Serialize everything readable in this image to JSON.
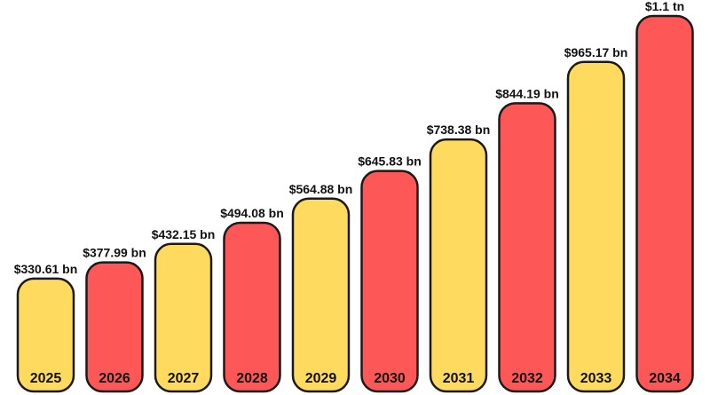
{
  "colors": {
    "yellow": "#FEDB5E",
    "red": "#FE5757",
    "outline": "#1A1A1A"
  },
  "chart_data": {
    "type": "bar",
    "categories": [
      "2025",
      "2026",
      "2027",
      "2028",
      "2029",
      "2030",
      "2031",
      "2032",
      "2033",
      "2034"
    ],
    "values": [
      330.61,
      377.99,
      432.15,
      494.08,
      564.88,
      645.83,
      738.38,
      844.19,
      965.17,
      1100
    ],
    "value_labels": [
      "$330.61 bn",
      "$377.99 bn",
      "$432.15 bn",
      "$494.08 bn",
      "$564.88 bn",
      "$645.83 bn",
      "$738.38 bn",
      "$844.19 bn",
      "$965.17 bn",
      "$1.1  tn"
    ],
    "bar_colors": [
      "yellow",
      "red",
      "yellow",
      "red",
      "yellow",
      "red",
      "yellow",
      "red",
      "yellow",
      "red"
    ],
    "unit": "USD billion",
    "title": "",
    "xlabel": "",
    "ylabel": "",
    "axes_visible": false,
    "grid": false,
    "legend": "none"
  }
}
